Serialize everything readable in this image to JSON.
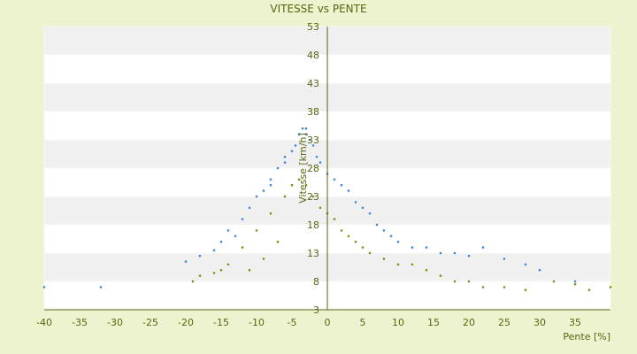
{
  "chart_data": {
    "type": "scatter",
    "title": "VITESSE vs PENTE",
    "xlabel": "Pente [%]",
    "ylabel": "Vitesse [km/h]",
    "xlim": [
      -40,
      40
    ],
    "ylim": [
      3,
      53
    ],
    "x_ticks": [
      -40,
      -35,
      -30,
      -25,
      -20,
      -15,
      -10,
      -5,
      0,
      5,
      10,
      15,
      20,
      25,
      30,
      35
    ],
    "y_ticks": [
      3,
      8,
      13,
      18,
      23,
      28,
      33,
      38,
      43,
      48,
      53
    ],
    "grid": "horizontal alternating bands",
    "colors": {
      "background": "#eef3cf",
      "band_light": "#ffffff",
      "band_dark": "#f0f0f0",
      "axis": "#5a6410",
      "series_blue": "#3f86d8",
      "series_olive": "#8a8a10"
    },
    "series": [
      {
        "color": "#3f86d8",
        "points": [
          [
            -40,
            7
          ],
          [
            -32,
            7
          ],
          [
            -20,
            11.5
          ],
          [
            -18,
            12.5
          ],
          [
            -16,
            13.5
          ],
          [
            -15,
            15
          ],
          [
            -14,
            17
          ],
          [
            -13,
            16
          ],
          [
            -12,
            19
          ],
          [
            -11,
            21
          ],
          [
            -10,
            23
          ],
          [
            -9,
            24
          ],
          [
            -8,
            26
          ],
          [
            -7,
            28
          ],
          [
            -6,
            30
          ],
          [
            -5,
            31
          ],
          [
            -4.5,
            32
          ],
          [
            -4,
            34
          ],
          [
            -3.5,
            35
          ],
          [
            -3,
            35
          ],
          [
            -2.5,
            33
          ],
          [
            -2,
            32
          ],
          [
            -1.5,
            30
          ],
          [
            -1,
            29
          ],
          [
            0,
            27
          ],
          [
            1,
            26
          ],
          [
            2,
            25
          ],
          [
            3,
            24
          ],
          [
            4,
            22
          ],
          [
            5,
            21
          ],
          [
            6,
            20
          ],
          [
            7,
            18
          ],
          [
            8,
            17
          ],
          [
            9,
            16
          ],
          [
            10,
            15
          ],
          [
            12,
            14
          ],
          [
            14,
            14
          ],
          [
            16,
            13
          ],
          [
            18,
            13
          ],
          [
            20,
            12.5
          ],
          [
            22,
            14
          ],
          [
            25,
            12
          ],
          [
            28,
            11
          ],
          [
            30,
            10
          ],
          [
            35,
            8
          ],
          [
            -3,
            34
          ],
          [
            -6,
            29
          ],
          [
            -8,
            25
          ]
        ]
      },
      {
        "color": "#8a8a10",
        "points": [
          [
            -19,
            8
          ],
          [
            -18,
            9
          ],
          [
            -16,
            9.5
          ],
          [
            -15,
            10
          ],
          [
            -14,
            11
          ],
          [
            -12,
            14
          ],
          [
            -10,
            17
          ],
          [
            -8,
            20
          ],
          [
            -6,
            23
          ],
          [
            -5,
            25
          ],
          [
            -4,
            26
          ],
          [
            -3,
            25
          ],
          [
            -2,
            23
          ],
          [
            -1,
            21
          ],
          [
            0,
            20
          ],
          [
            1,
            19
          ],
          [
            2,
            17
          ],
          [
            3,
            16
          ],
          [
            4,
            15
          ],
          [
            5,
            14
          ],
          [
            6,
            13
          ],
          [
            8,
            12
          ],
          [
            10,
            11
          ],
          [
            12,
            11
          ],
          [
            14,
            10
          ],
          [
            16,
            9
          ],
          [
            18,
            8
          ],
          [
            20,
            8
          ],
          [
            22,
            7
          ],
          [
            25,
            7
          ],
          [
            28,
            6.5
          ],
          [
            32,
            8
          ],
          [
            35,
            7.5
          ],
          [
            37,
            6.5
          ],
          [
            40,
            7
          ],
          [
            -7,
            15
          ],
          [
            -9,
            12
          ],
          [
            -11,
            10
          ]
        ]
      }
    ]
  }
}
